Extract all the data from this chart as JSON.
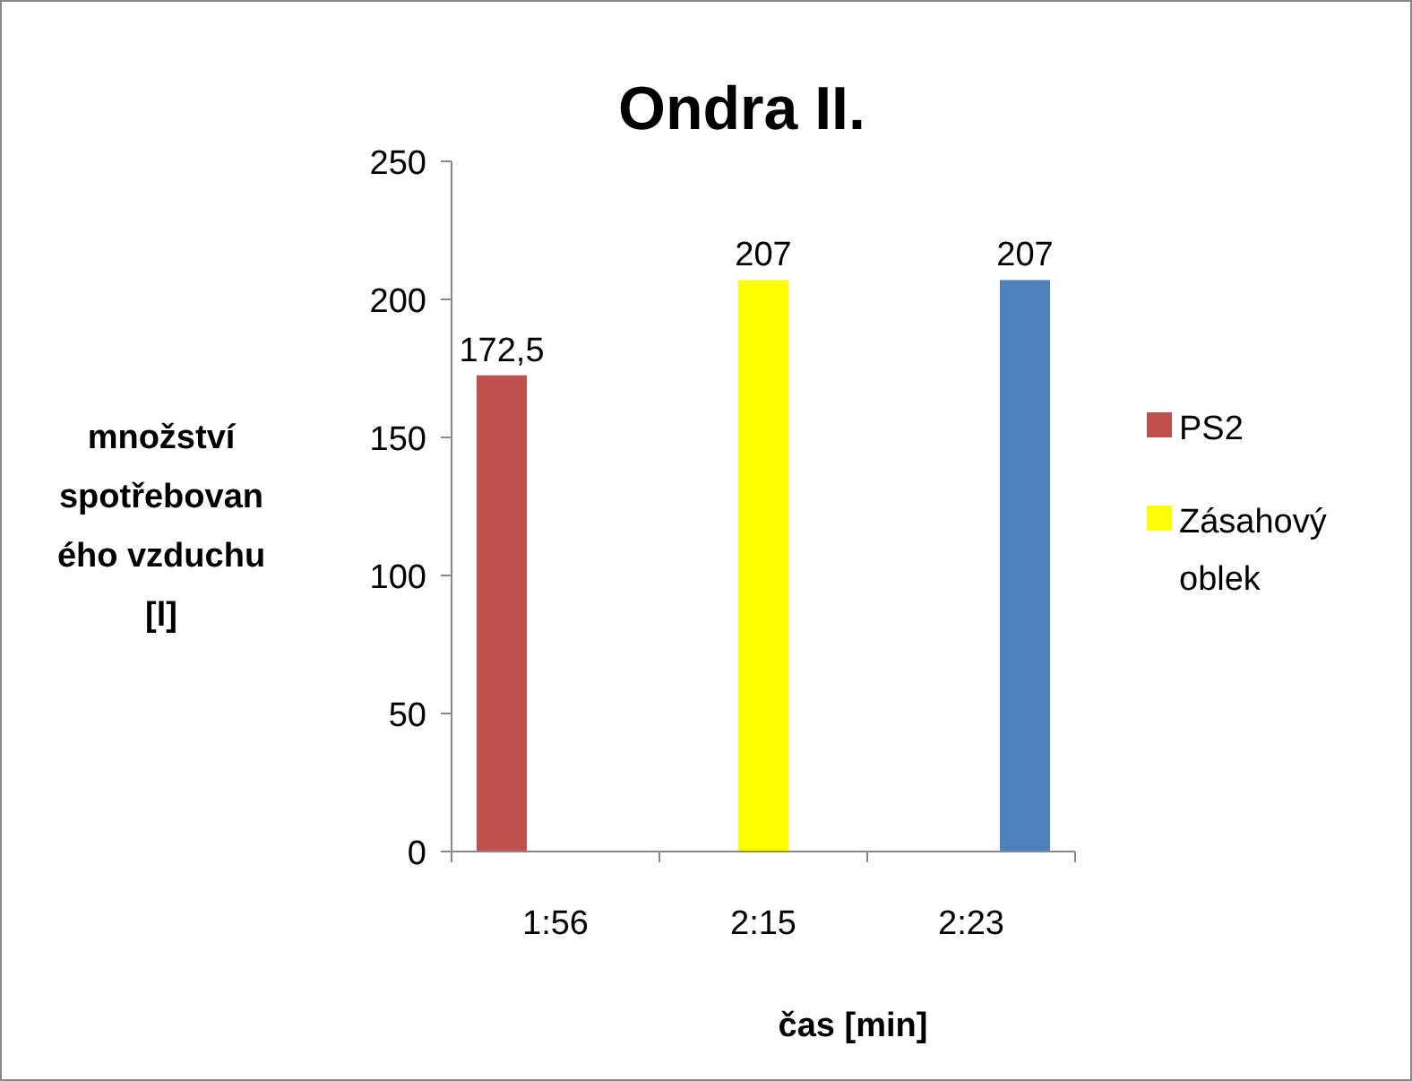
{
  "chart_data": {
    "type": "bar",
    "title": "Ondra II.",
    "xlabel": "čas [min]",
    "ylabel": "množství spotřebovaného vzduchu [l]",
    "categories": [
      "1:56",
      "2:15",
      "2:23"
    ],
    "series": [
      {
        "name": "PS2",
        "color": "#c0504d",
        "values": [
          172.5,
          null,
          null
        ],
        "value_labels": [
          "172,5",
          null,
          null
        ]
      },
      {
        "name": "Zásahový oblek",
        "color": "#ffff00",
        "values": [
          null,
          207,
          null
        ],
        "value_labels": [
          null,
          "207",
          null
        ]
      },
      {
        "color": "#4f81bd",
        "values": [
          null,
          null,
          207
        ],
        "value_labels": [
          null,
          null,
          "207"
        ]
      }
    ],
    "ylim": [
      0,
      250
    ],
    "yticks": [
      0,
      50,
      100,
      150,
      200,
      250
    ],
    "grid": false,
    "legend": "right"
  }
}
